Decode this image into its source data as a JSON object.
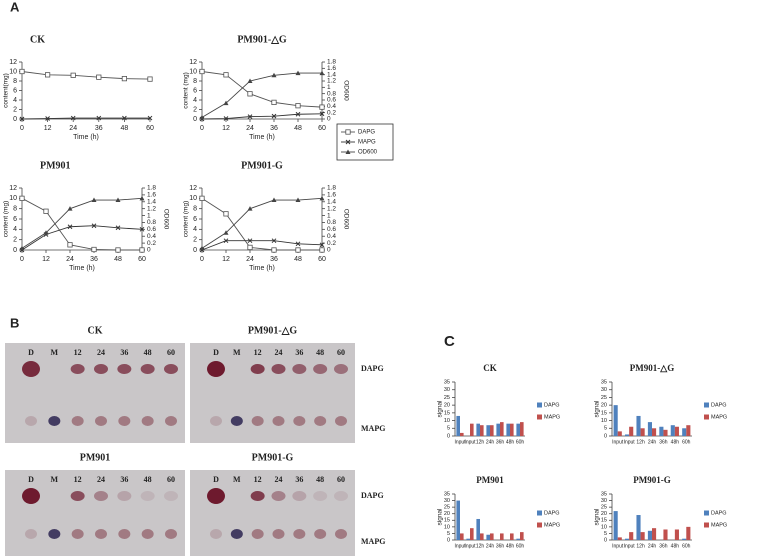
{
  "panel_labels": [
    "A",
    "B",
    "C"
  ],
  "chart_data": [
    {
      "type": "line",
      "title": "CK",
      "x_label": "Time (h)",
      "y_label": "content(mg)",
      "x": [
        0,
        12,
        24,
        36,
        48,
        60
      ],
      "xlim": [
        0,
        60
      ],
      "xticks": [
        0,
        12,
        24,
        36,
        48,
        60
      ],
      "ylim": [
        0,
        12
      ],
      "yticks": [
        0,
        2,
        4,
        6,
        8,
        10,
        12
      ],
      "series": [
        {
          "color": "#555555",
          "marker": "square",
          "values": [
            10,
            9.3,
            9.2,
            8.8,
            8.5,
            8.4
          ]
        },
        {
          "color": "#333333",
          "marker": "cross",
          "values": [
            0,
            0.1,
            0.2,
            0.2,
            0.2,
            0.2
          ]
        }
      ]
    },
    {
      "type": "line",
      "title": "PM901-△G",
      "x_label": "Time (h)",
      "y_label": "content (mg)",
      "y2_label": "OD600",
      "x": [
        0,
        12,
        24,
        36,
        48,
        60
      ],
      "xlim": [
        0,
        60
      ],
      "xticks": [
        0,
        12,
        24,
        36,
        48,
        60
      ],
      "ylim": [
        0,
        12
      ],
      "yticks": [
        0,
        2,
        4,
        6,
        8,
        10,
        12
      ],
      "y2lim": [
        0,
        1.8
      ],
      "y2ticks": [
        0,
        0.2,
        0.4,
        0.6,
        0.8,
        1,
        1.2,
        1.4,
        1.6,
        1.8
      ],
      "series": [
        {
          "name": "DAPG",
          "color": "#555555",
          "marker": "square",
          "values": [
            10,
            9.3,
            5.3,
            3.5,
            2.8,
            2.5
          ]
        },
        {
          "name": "MAPG",
          "color": "#333333",
          "marker": "cross",
          "values": [
            0,
            0.1,
            0.5,
            0.6,
            1.0,
            1.1
          ]
        },
        {
          "name": "OD600",
          "color": "#444444",
          "marker": "triangle",
          "axis": "y2",
          "values": [
            0.05,
            0.5,
            1.2,
            1.38,
            1.45,
            1.45
          ]
        }
      ]
    },
    {
      "type": "line",
      "title": "PM901",
      "x_label": "Time (h)",
      "y_label": "content (mg)",
      "y2_label": "OD600",
      "x": [
        0,
        12,
        24,
        36,
        48,
        60
      ],
      "xlim": [
        0,
        60
      ],
      "xticks": [
        0,
        12,
        24,
        36,
        48,
        60
      ],
      "ylim": [
        0,
        12
      ],
      "yticks": [
        0,
        2,
        4,
        6,
        8,
        10,
        12
      ],
      "y2lim": [
        0,
        1.8
      ],
      "y2ticks": [
        0,
        0.2,
        0.4,
        0.6,
        0.8,
        1,
        1.2,
        1.4,
        1.6,
        1.8
      ],
      "series": [
        {
          "color": "#555555",
          "marker": "square",
          "values": [
            10,
            7.5,
            1.0,
            0.1,
            0,
            0
          ]
        },
        {
          "color": "#333333",
          "marker": "cross",
          "values": [
            0,
            3.0,
            4.5,
            4.7,
            4.3,
            4.0
          ]
        },
        {
          "color": "#444444",
          "marker": "triangle",
          "axis": "y2",
          "values": [
            0.05,
            0.5,
            1.2,
            1.45,
            1.45,
            1.5
          ]
        }
      ]
    },
    {
      "type": "line",
      "title": "PM901-G",
      "x_label": "Time (h)",
      "y_label": "content (mg)",
      "y2_label": "OD600",
      "x": [
        0,
        12,
        24,
        36,
        48,
        60
      ],
      "xlim": [
        0,
        60
      ],
      "xticks": [
        0,
        12,
        24,
        36,
        48,
        60
      ],
      "ylim": [
        0,
        12
      ],
      "yticks": [
        0,
        2,
        4,
        6,
        8,
        10,
        12
      ],
      "y2lim": [
        0,
        1.8
      ],
      "y2ticks": [
        0,
        0.2,
        0.4,
        0.6,
        0.8,
        1,
        1.2,
        1.4,
        1.6,
        1.8
      ],
      "series": [
        {
          "color": "#555555",
          "marker": "square",
          "values": [
            10,
            7.0,
            0.5,
            0,
            0,
            0
          ]
        },
        {
          "color": "#333333",
          "marker": "cross",
          "values": [
            0,
            1.8,
            1.8,
            1.8,
            1.2,
            1.0
          ]
        },
        {
          "color": "#444444",
          "marker": "triangle",
          "axis": "y2",
          "values": [
            0.05,
            0.5,
            1.2,
            1.45,
            1.45,
            1.5
          ]
        }
      ]
    },
    {
      "type": "bar",
      "title": "CK",
      "y_label": "signal",
      "categories": [
        "Input",
        "Input",
        "12h",
        "24h",
        "36h",
        "48h",
        "60h"
      ],
      "ylim": [
        0,
        35
      ],
      "yticks": [
        0,
        5,
        10,
        15,
        20,
        25,
        30,
        35
      ],
      "series": [
        {
          "name": "DAPG",
          "color": "#4f81bd",
          "values": [
            13,
            0,
            8,
            7,
            8,
            8,
            8
          ]
        },
        {
          "name": "MAPG",
          "color": "#c0504d",
          "values": [
            2,
            8,
            7,
            7,
            9,
            8,
            9
          ]
        }
      ]
    },
    {
      "type": "bar",
      "title": "PM901-△G",
      "y_label": "signal",
      "categories": [
        "Input",
        "Input",
        "12h",
        "24h",
        "36h",
        "48h",
        "60h"
      ],
      "ylim": [
        0,
        35
      ],
      "yticks": [
        0,
        5,
        10,
        15,
        20,
        25,
        30,
        35
      ],
      "series": [
        {
          "name": "DAPG",
          "color": "#4f81bd",
          "values": [
            20,
            1,
            13,
            9,
            6,
            7,
            5
          ]
        },
        {
          "name": "MAPG",
          "color": "#c0504d",
          "values": [
            3,
            6,
            5,
            5,
            4,
            6,
            7
          ]
        }
      ]
    },
    {
      "type": "bar",
      "title": "PM901",
      "y_label": "signal",
      "categories": [
        "Input",
        "Input",
        "12h",
        "24h",
        "36h",
        "48h",
        "60h"
      ],
      "ylim": [
        0,
        35
      ],
      "yticks": [
        0,
        5,
        10,
        15,
        20,
        25,
        30,
        35
      ],
      "series": [
        {
          "name": "DAPG",
          "color": "#4f81bd",
          "values": [
            30,
            1,
            16,
            4,
            0,
            0,
            1
          ]
        },
        {
          "name": "MAPG",
          "color": "#c0504d",
          "values": [
            5,
            9,
            5,
            5,
            5,
            5,
            6
          ]
        }
      ]
    },
    {
      "type": "bar",
      "title": "PM901-G",
      "y_label": "signal",
      "categories": [
        "Input",
        "Input",
        "12h",
        "24h",
        "36h",
        "48h",
        "60h"
      ],
      "ylim": [
        0,
        35
      ],
      "yticks": [
        0,
        5,
        10,
        15,
        20,
        25,
        30,
        35
      ],
      "series": [
        {
          "name": "DAPG",
          "color": "#4f81bd",
          "values": [
            22,
            1,
            19,
            7,
            0,
            0,
            1
          ]
        },
        {
          "name": "MAPG",
          "color": "#c0504d",
          "values": [
            2,
            6,
            6,
            9,
            8,
            8,
            10
          ]
        }
      ]
    }
  ],
  "tlc": {
    "plates": [
      {
        "title": "CK",
        "lanes": [
          "D",
          "M",
          "12",
          "24",
          "36",
          "48",
          "60"
        ]
      },
      {
        "title": "PM901-△G",
        "lanes": [
          "D",
          "M",
          "12",
          "24",
          "36",
          "48",
          "60"
        ],
        "bands": [
          "DAPG",
          "MAPG"
        ]
      },
      {
        "title": "PM901",
        "lanes": [
          "D",
          "M",
          "12",
          "24",
          "36",
          "48",
          "60"
        ]
      },
      {
        "title": "PM901-G",
        "lanes": [
          "D",
          "M",
          "12",
          "24",
          "36",
          "48",
          "60"
        ],
        "bands": [
          "DAPG",
          "MAPG"
        ]
      }
    ]
  }
}
